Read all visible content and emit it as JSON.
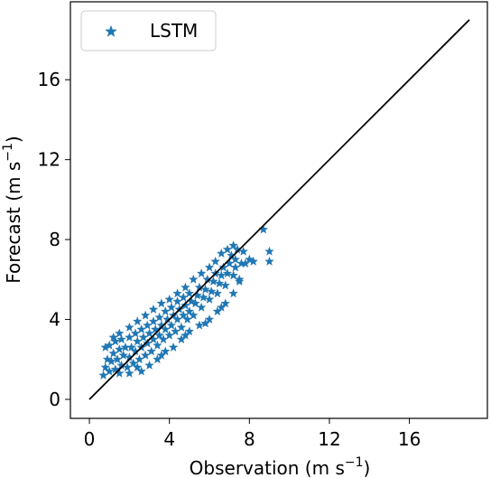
{
  "chart_data": {
    "type": "scatter",
    "xlabel": "Observation (m s",
    "xlabel_sup": "−1",
    "xlabel_close": ")",
    "ylabel": "Forecast (m s",
    "ylabel_sup": "−1",
    "ylabel_close": ")",
    "xlim": [
      -0.95,
      19.9
    ],
    "ylim": [
      -0.95,
      19.9
    ],
    "xticks": [
      0,
      4,
      8,
      12,
      16
    ],
    "yticks": [
      0,
      4,
      8,
      12,
      16
    ],
    "grid": false,
    "legend": {
      "placement": "top-left",
      "entries": [
        "LSTM"
      ]
    },
    "series": [
      {
        "name": "LSTM",
        "marker": "star",
        "color": "#1f77b4",
        "points": [
          [
            0.7,
            1.2
          ],
          [
            0.8,
            1.6
          ],
          [
            0.9,
            2.0
          ],
          [
            0.8,
            2.6
          ],
          [
            1.0,
            1.4
          ],
          [
            1.1,
            1.9
          ],
          [
            1.2,
            2.3
          ],
          [
            1.0,
            2.7
          ],
          [
            1.3,
            1.5
          ],
          [
            1.4,
            2.0
          ],
          [
            1.5,
            2.5
          ],
          [
            1.3,
            2.9
          ],
          [
            1.6,
            1.7
          ],
          [
            1.7,
            2.2
          ],
          [
            1.8,
            2.6
          ],
          [
            1.6,
            3.0
          ],
          [
            1.9,
            1.6
          ],
          [
            2.0,
            2.1
          ],
          [
            2.1,
            2.6
          ],
          [
            2.0,
            3.1
          ],
          [
            2.2,
            1.8
          ],
          [
            2.3,
            2.4
          ],
          [
            2.4,
            2.9
          ],
          [
            2.3,
            3.3
          ],
          [
            2.5,
            2.0
          ],
          [
            2.6,
            2.6
          ],
          [
            2.7,
            3.1
          ],
          [
            2.6,
            3.5
          ],
          [
            2.8,
            2.2
          ],
          [
            2.9,
            2.8
          ],
          [
            3.0,
            3.3
          ],
          [
            2.9,
            3.7
          ],
          [
            3.1,
            2.4
          ],
          [
            3.2,
            3.0
          ],
          [
            3.3,
            3.5
          ],
          [
            3.2,
            3.9
          ],
          [
            3.4,
            2.7
          ],
          [
            3.5,
            3.2
          ],
          [
            3.6,
            3.7
          ],
          [
            3.5,
            4.1
          ],
          [
            3.7,
            3.0
          ],
          [
            3.8,
            3.5
          ],
          [
            3.9,
            4.0
          ],
          [
            3.8,
            4.4
          ],
          [
            4.0,
            3.2
          ],
          [
            4.1,
            3.7
          ],
          [
            4.2,
            4.2
          ],
          [
            4.1,
            4.6
          ],
          [
            4.3,
            3.4
          ],
          [
            4.4,
            4.0
          ],
          [
            4.5,
            4.5
          ],
          [
            4.4,
            4.9
          ],
          [
            4.6,
            3.6
          ],
          [
            4.7,
            4.2
          ],
          [
            4.8,
            4.7
          ],
          [
            4.7,
            5.1
          ],
          [
            4.9,
            4.0
          ],
          [
            5.0,
            4.4
          ],
          [
            5.1,
            4.9
          ],
          [
            5.0,
            5.3
          ],
          [
            5.2,
            4.2
          ],
          [
            5.3,
            4.8
          ],
          [
            5.4,
            5.2
          ],
          [
            5.5,
            5.6
          ],
          [
            5.6,
            4.6
          ],
          [
            5.7,
            5.1
          ],
          [
            5.8,
            5.5
          ],
          [
            5.9,
            6.0
          ],
          [
            6.0,
            5.0
          ],
          [
            6.1,
            5.4
          ],
          [
            6.2,
            5.9
          ],
          [
            6.3,
            6.3
          ],
          [
            6.4,
            5.3
          ],
          [
            6.5,
            5.8
          ],
          [
            6.6,
            6.2
          ],
          [
            6.7,
            6.6
          ],
          [
            6.8,
            5.7
          ],
          [
            6.9,
            6.3
          ],
          [
            7.0,
            6.8
          ],
          [
            7.1,
            7.2
          ],
          [
            7.2,
            6.2
          ],
          [
            7.3,
            7.0
          ],
          [
            7.4,
            7.5
          ],
          [
            7.5,
            6.0
          ],
          [
            7.6,
            6.8
          ],
          [
            7.7,
            7.4
          ],
          [
            7.2,
            7.7
          ],
          [
            6.9,
            7.5
          ],
          [
            1.2,
            3.1
          ],
          [
            1.5,
            3.3
          ],
          [
            2.0,
            3.6
          ],
          [
            2.4,
            3.9
          ],
          [
            2.8,
            4.2
          ],
          [
            3.2,
            4.5
          ],
          [
            3.6,
            4.8
          ],
          [
            4.0,
            5.0
          ],
          [
            4.4,
            5.3
          ],
          [
            4.8,
            5.6
          ],
          [
            5.2,
            6.0
          ],
          [
            5.6,
            6.3
          ],
          [
            6.0,
            6.6
          ],
          [
            6.3,
            6.9
          ],
          [
            6.6,
            7.3
          ],
          [
            1.5,
            1.3
          ],
          [
            2.0,
            1.3
          ],
          [
            2.6,
            1.4
          ],
          [
            3.0,
            1.7
          ],
          [
            3.4,
            2.0
          ],
          [
            3.8,
            2.4
          ],
          [
            4.2,
            2.6
          ],
          [
            4.6,
            3.0
          ],
          [
            5.0,
            3.4
          ],
          [
            5.5,
            3.7
          ],
          [
            6.0,
            4.0
          ],
          [
            6.4,
            4.4
          ],
          [
            6.8,
            4.8
          ],
          [
            7.2,
            5.3
          ],
          [
            7.5,
            5.9
          ],
          [
            2.4,
            1.6
          ],
          [
            3.6,
            2.2
          ],
          [
            4.8,
            3.2
          ],
          [
            5.8,
            3.8
          ],
          [
            6.6,
            4.6
          ],
          [
            8.2,
            6.9
          ],
          [
            8.7,
            8.5
          ],
          [
            9.0,
            7.4
          ],
          [
            9.0,
            6.9
          ],
          [
            7.8,
            6.8
          ],
          [
            8.0,
            7.0
          ],
          [
            7.3,
            6.6
          ]
        ]
      }
    ],
    "reference_line": {
      "from": [
        0,
        0
      ],
      "to": [
        19,
        19
      ],
      "color": "#000000"
    }
  }
}
